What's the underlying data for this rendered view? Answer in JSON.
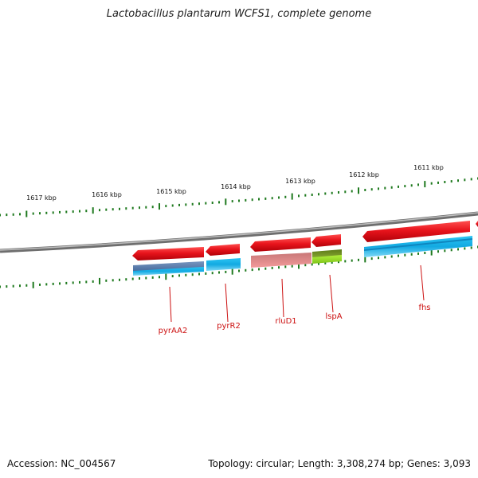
{
  "title": "Lactobacillus plantarum WCFS1, complete genome",
  "footer": {
    "accession": "Accession: NC_004567",
    "summary": "Topology: circular; Length: 3,308,274 bp; Genes: 3,093"
  },
  "scale_labels": [
    "1617 kbp",
    "1616 kbp",
    "1615 kbp",
    "1614 kbp",
    "1613 kbp",
    "1612 kbp",
    "1611 kbp"
  ],
  "genes": [
    "pyrAA2",
    "pyrR2",
    "rluD1",
    "lspA",
    "fhs"
  ],
  "colors": {
    "backbone": "#7a7a7a",
    "ticks": "#1f7a1f",
    "cds_arrow": "#e8141c",
    "gene_label": "#cc1010",
    "feature_blue": "#19b6ea",
    "feature_slate": "#5a7fb0",
    "feature_pink": "#f08a8a",
    "feature_green": "#8fd61e",
    "feature_olive": "#6b8a20"
  }
}
